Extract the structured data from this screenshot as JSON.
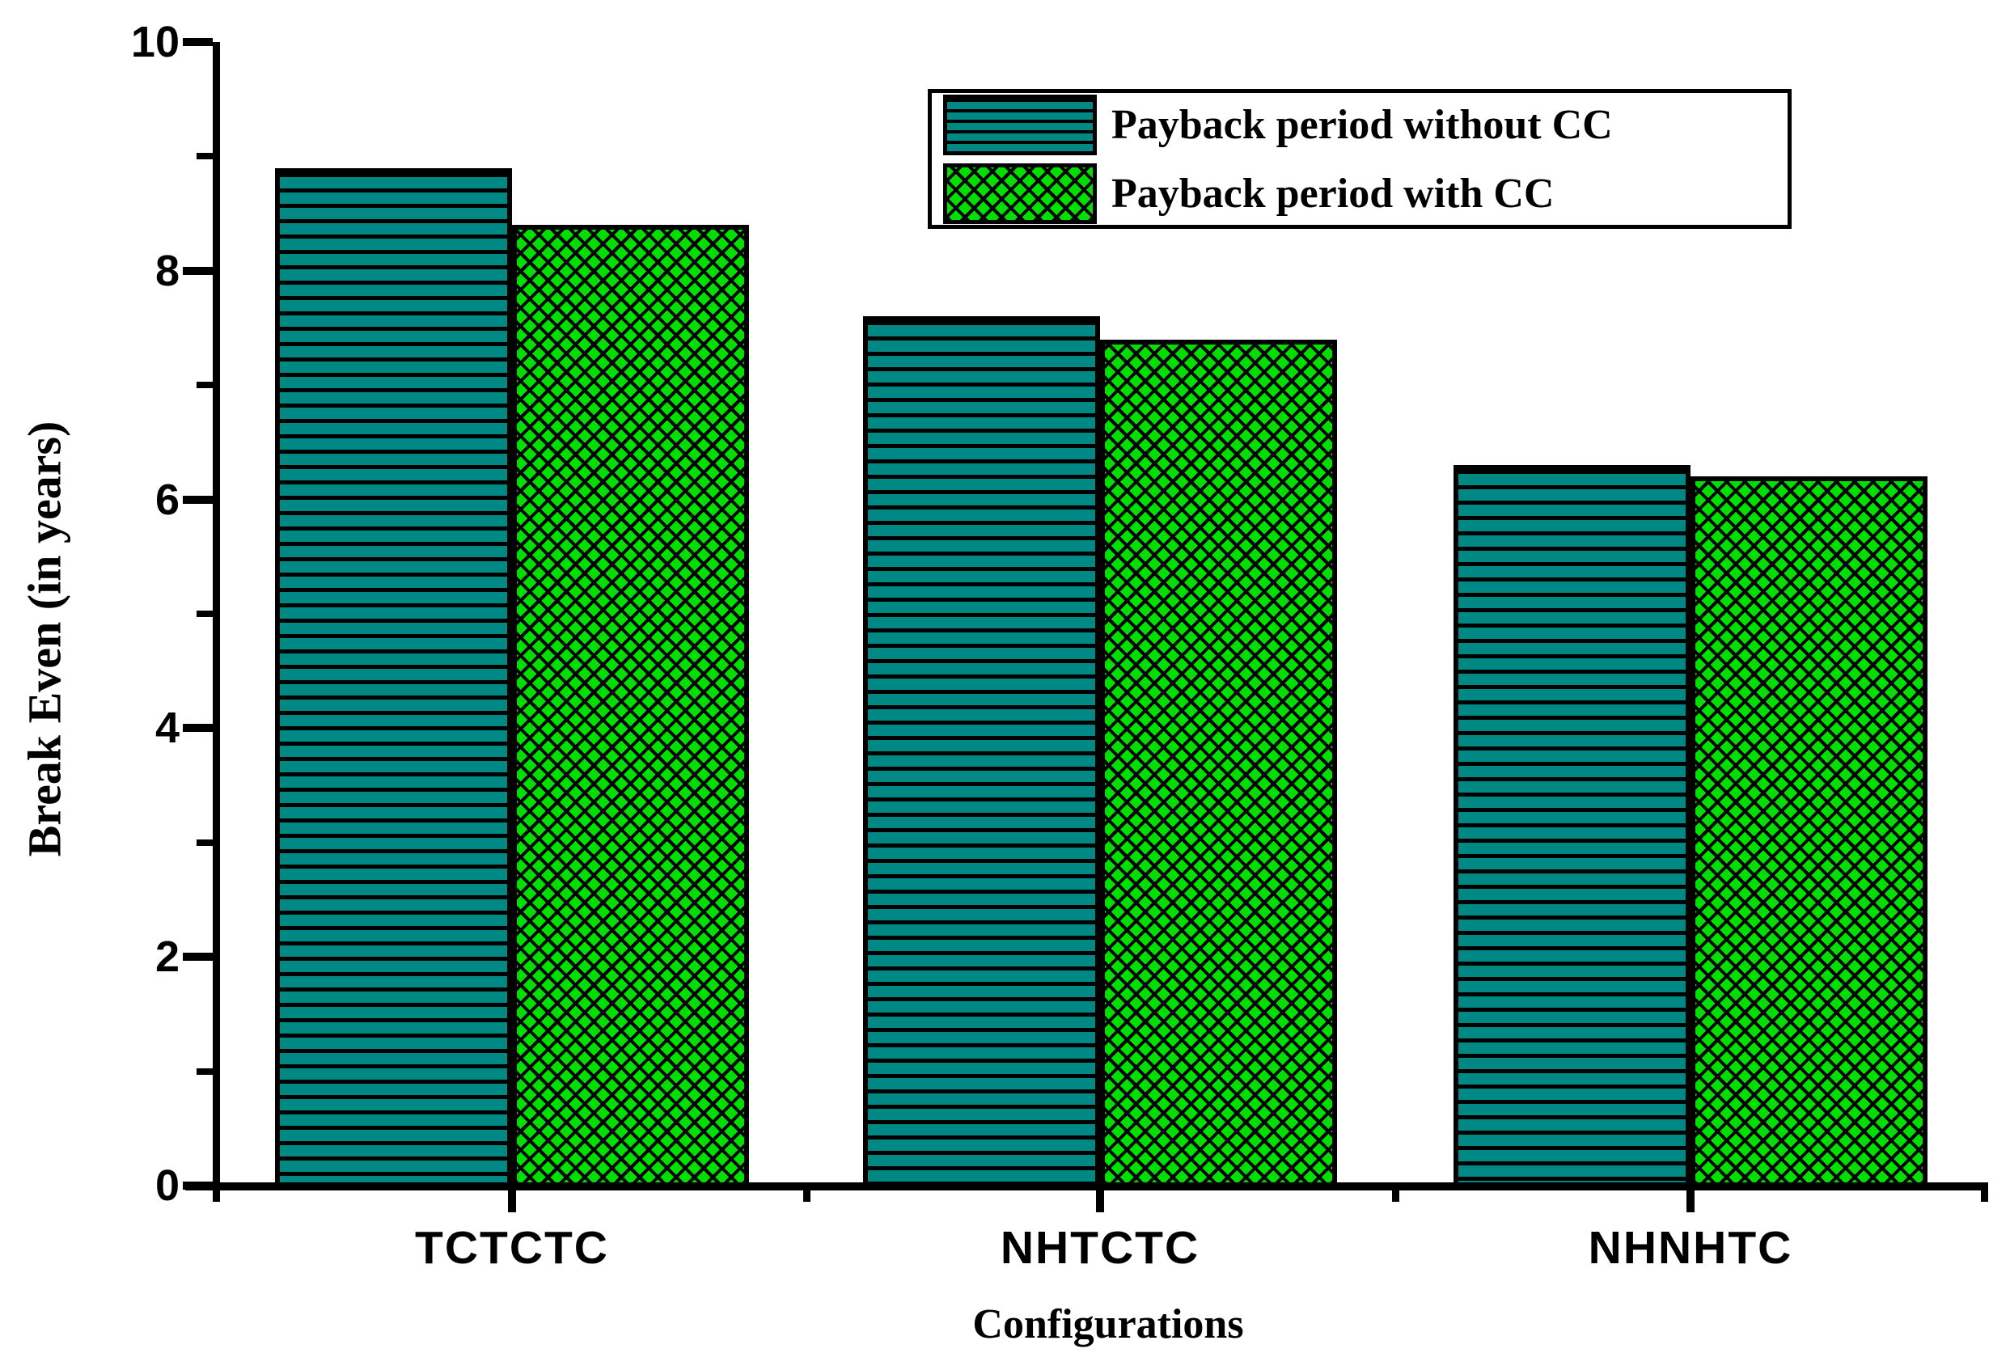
{
  "figure": {
    "background_color": "#ffffff",
    "axis_color": "#000000",
    "colors": {
      "without_cc_fill": "#008884",
      "with_cc_fill": "#00DF00",
      "hatch_line": "#000000"
    },
    "legend": [
      {
        "label": "Payback period without CC",
        "swatch": "teal-horizontal-lines"
      },
      {
        "label": "Payback period with CC",
        "swatch": "green-diagonal-crosshatch"
      }
    ]
  },
  "chart_data": {
    "type": "bar",
    "title": "",
    "categories": [
      "TCTCTC",
      "NHTCTC",
      "NHNHTC"
    ],
    "series": [
      {
        "name": "Payback period without CC",
        "values": [
          8.9,
          7.6,
          6.3
        ],
        "color": "#008884",
        "pattern": "horizontal-lines"
      },
      {
        "name": "Payback period with CC",
        "values": [
          8.4,
          7.4,
          6.2
        ],
        "color": "#00DF00",
        "pattern": "diagonal-crosshatch"
      }
    ],
    "xlabel": "Configurations",
    "ylabel": "Break Even (in years)",
    "ylim": [
      0,
      10
    ],
    "ytick_major_values": [
      0,
      2,
      4,
      6,
      8,
      10
    ],
    "ytick_major_labels": [
      "0",
      "2",
      "4",
      "6",
      "8",
      "10"
    ],
    "ytick_minor_values": [
      1,
      3,
      5,
      7,
      9
    ],
    "grid": false,
    "legend_position": "upper-center-right",
    "bar_grouping": "paired-adjacent"
  }
}
